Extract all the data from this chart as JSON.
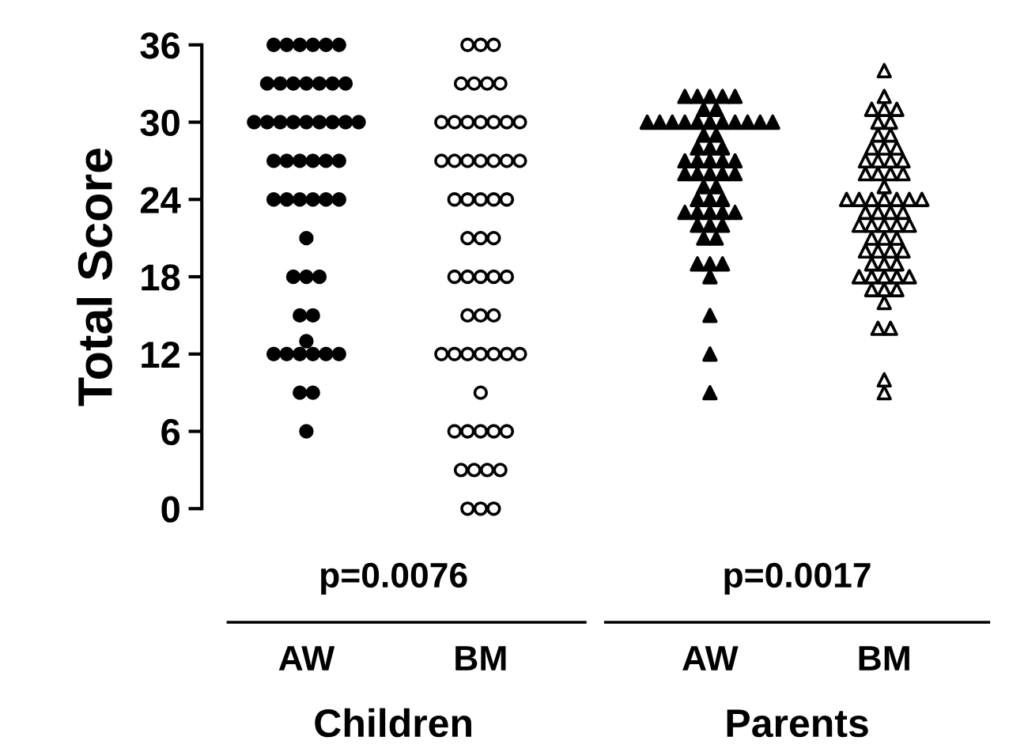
{
  "chart_data": [
    {
      "type": "scatter",
      "ylabel": "Total Score",
      "xlabel": "Children",
      "categories": [
        "AW",
        "BM"
      ],
      "ylim": [
        0,
        36
      ],
      "yticks": [
        0,
        6,
        12,
        18,
        24,
        30,
        36
      ],
      "grid": false,
      "legend": false,
      "series": [
        {
          "type": "scatter",
          "marker": "circle",
          "color": "#000000",
          "x": [
            "AW",
            "AW",
            "AW",
            "AW",
            "AW",
            "AW",
            "AW",
            "AW",
            "AW",
            "AW",
            "AW",
            "AW",
            "AW",
            "AW",
            "AW",
            "AW",
            "AW",
            "AW",
            "AW",
            "AW",
            "AW",
            "AW",
            "AW",
            "AW",
            "AW",
            "AW",
            "AW",
            "AW",
            "AW",
            "AW",
            "AW",
            "AW",
            "AW",
            "AW",
            "AW",
            "AW",
            "AW",
            "AW",
            "AW",
            "AW",
            "AW",
            "AW",
            "AW",
            "AW",
            "AW",
            "AW",
            "AW",
            "AW",
            "AW",
            "AW"
          ],
          "values": [
            36,
            36,
            36,
            36,
            36,
            36,
            33,
            33,
            33,
            33,
            33,
            33,
            33,
            30,
            30,
            30,
            30,
            30,
            30,
            30,
            30,
            30,
            27,
            27,
            27,
            27,
            27,
            27,
            24,
            24,
            24,
            24,
            24,
            24,
            21,
            18,
            18,
            18,
            15,
            15,
            13,
            12,
            12,
            12,
            12,
            12,
            12,
            9,
            9,
            6
          ]
        },
        {
          "type": "scatter",
          "marker": "circle",
          "color": "#ffffff",
          "x": [
            "BM",
            "BM",
            "BM",
            "BM",
            "BM",
            "BM",
            "BM",
            "BM",
            "BM",
            "BM",
            "BM",
            "BM",
            "BM",
            "BM",
            "BM",
            "BM",
            "BM",
            "BM",
            "BM",
            "BM",
            "BM",
            "BM",
            "BM",
            "BM",
            "BM",
            "BM",
            "BM",
            "BM",
            "BM",
            "BM",
            "BM",
            "BM",
            "BM",
            "BM",
            "BM",
            "BM",
            "BM",
            "BM",
            "BM",
            "BM",
            "BM",
            "BM",
            "BM",
            "BM",
            "BM",
            "BM",
            "BM",
            "BM",
            "BM",
            "BM",
            "BM",
            "BM",
            "BM",
            "BM",
            "BM",
            "BM",
            "BM"
          ],
          "values": [
            36,
            36,
            36,
            33,
            33,
            33,
            33,
            30,
            30,
            30,
            30,
            30,
            30,
            30,
            27,
            27,
            27,
            27,
            27,
            27,
            27,
            24,
            24,
            24,
            24,
            24,
            21,
            21,
            21,
            18,
            18,
            18,
            18,
            18,
            15,
            15,
            15,
            12,
            12,
            12,
            12,
            12,
            12,
            12,
            9,
            6,
            6,
            6,
            6,
            6,
            3,
            3,
            3,
            3,
            0,
            0,
            0
          ]
        }
      ],
      "annotations": [
        "p=0.0076"
      ]
    },
    {
      "type": "scatter",
      "xlabel": "Parents",
      "tick_labels": "x",
      "categories": [
        "AW",
        "BM"
      ],
      "ylim": [
        0,
        36
      ],
      "grid": false,
      "legend": false,
      "series": [
        {
          "type": "scatter",
          "marker": "triangle",
          "color": "#000000",
          "x": [
            "AW",
            "AW",
            "AW",
            "AW",
            "AW",
            "AW",
            "AW",
            "AW",
            "AW",
            "AW",
            "AW",
            "AW",
            "AW",
            "AW",
            "AW",
            "AW",
            "AW",
            "AW",
            "AW",
            "AW",
            "AW",
            "AW",
            "AW",
            "AW",
            "AW",
            "AW",
            "AW",
            "AW",
            "AW",
            "AW",
            "AW",
            "AW",
            "AW",
            "AW",
            "AW",
            "AW",
            "AW",
            "AW",
            "AW",
            "AW",
            "AW",
            "AW",
            "AW",
            "AW",
            "AW",
            "AW",
            "AW",
            "AW",
            "AW",
            "AW",
            "AW",
            "AW",
            "AW",
            "AW",
            "AW"
          ],
          "values": [
            32,
            32,
            32,
            32,
            32,
            31,
            31,
            30,
            30,
            30,
            30,
            30,
            30,
            30,
            30,
            30,
            30,
            30,
            29,
            29,
            28,
            28,
            28,
            27,
            27,
            27,
            27,
            27,
            26,
            26,
            26,
            26,
            26,
            25,
            25,
            24,
            24,
            24,
            23,
            23,
            23,
            23,
            23,
            22,
            22,
            22,
            21,
            21,
            19,
            19,
            19,
            18,
            15,
            12,
            9
          ]
        },
        {
          "type": "scatter",
          "marker": "triangle",
          "color": "#ffffff",
          "x": [
            "BM",
            "BM",
            "BM",
            "BM",
            "BM",
            "BM",
            "BM",
            "BM",
            "BM",
            "BM",
            "BM",
            "BM",
            "BM",
            "BM",
            "BM",
            "BM",
            "BM",
            "BM",
            "BM",
            "BM",
            "BM",
            "BM",
            "BM",
            "BM",
            "BM",
            "BM",
            "BM",
            "BM",
            "BM",
            "BM",
            "BM",
            "BM",
            "BM",
            "BM",
            "BM",
            "BM",
            "BM",
            "BM",
            "BM",
            "BM",
            "BM",
            "BM",
            "BM",
            "BM",
            "BM",
            "BM",
            "BM",
            "BM",
            "BM",
            "BM",
            "BM",
            "BM",
            "BM",
            "BM",
            "BM",
            "BM",
            "BM",
            "BM",
            "BM",
            "BM"
          ],
          "values": [
            34,
            32,
            31,
            31,
            31,
            30,
            30,
            29,
            29,
            28,
            28,
            28,
            27,
            27,
            27,
            27,
            26,
            26,
            26,
            26,
            25,
            24,
            24,
            24,
            24,
            24,
            24,
            24,
            23,
            23,
            23,
            23,
            22,
            22,
            22,
            22,
            22,
            21,
            21,
            21,
            20,
            20,
            20,
            20,
            19,
            19,
            19,
            18,
            18,
            18,
            18,
            18,
            17,
            17,
            17,
            16,
            14,
            14,
            10,
            9
          ]
        }
      ],
      "annotations": [
        "p=0.0017"
      ]
    }
  ]
}
